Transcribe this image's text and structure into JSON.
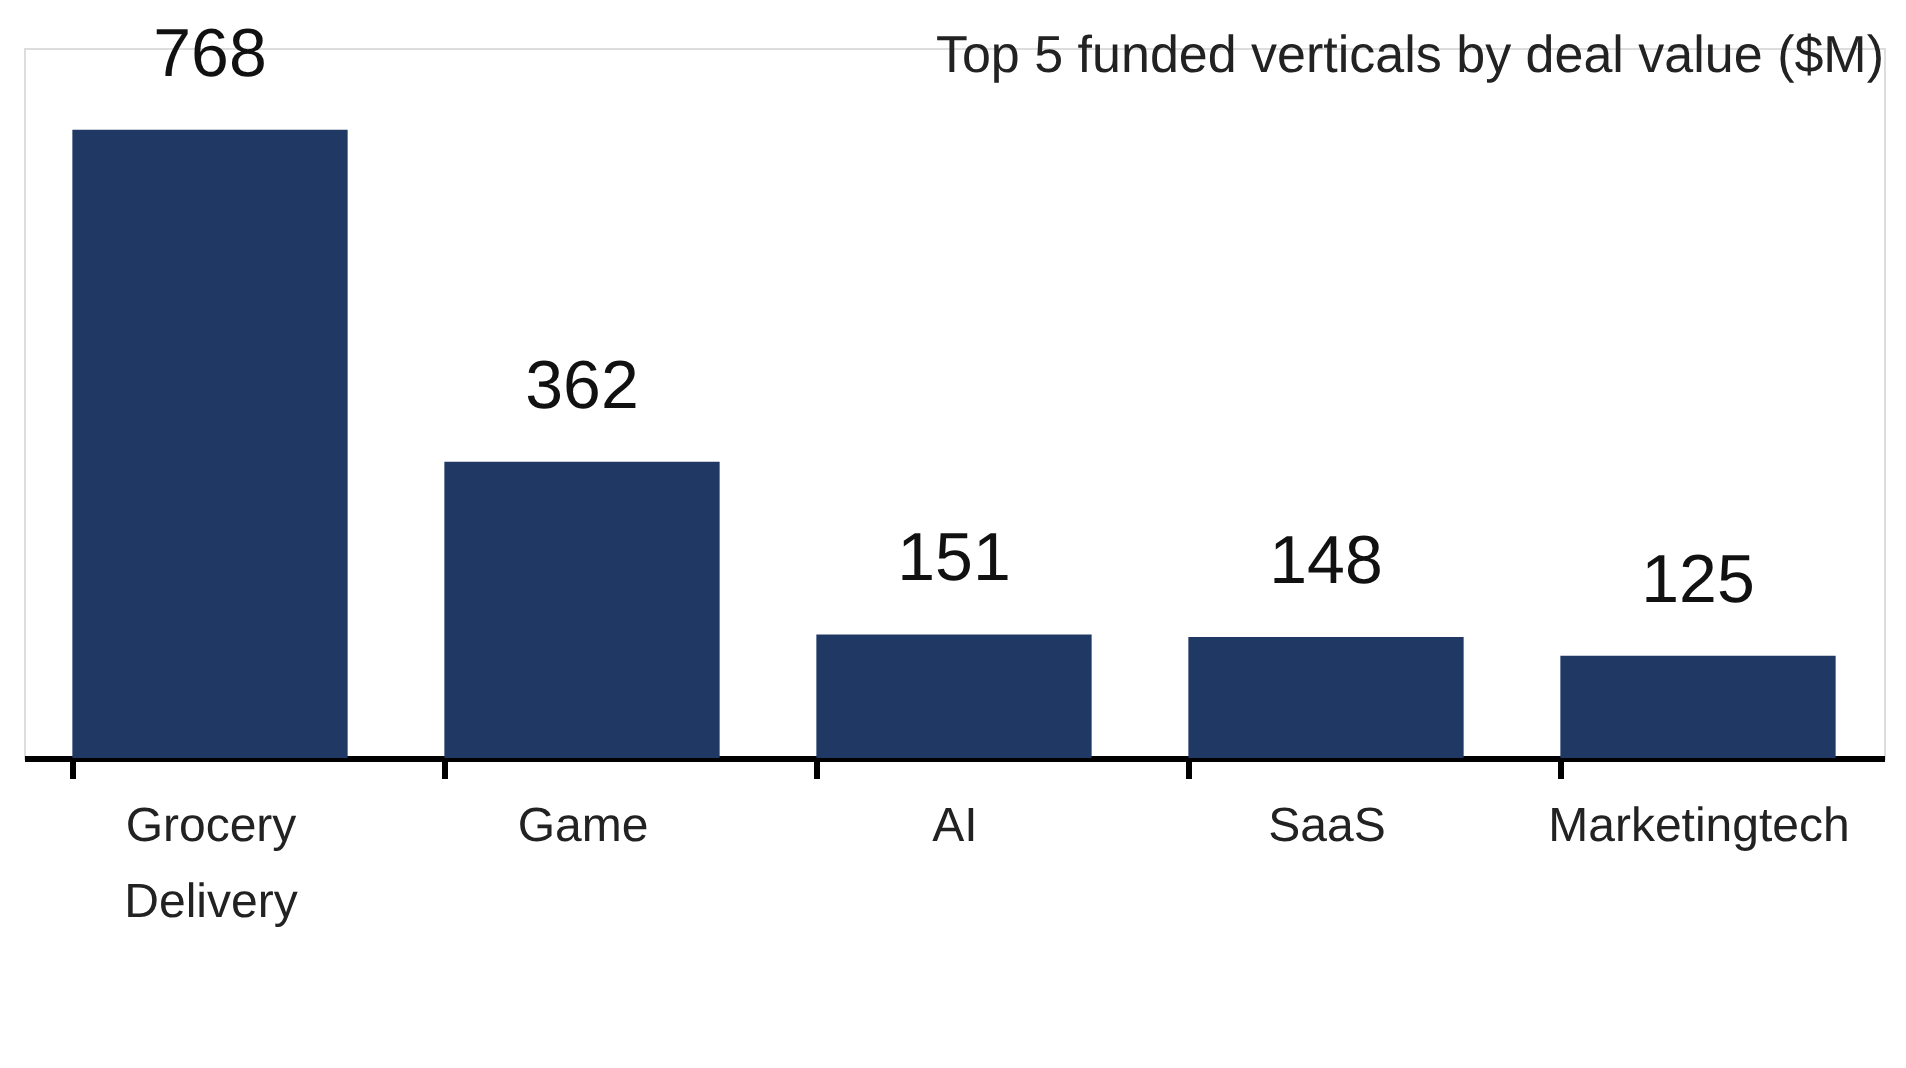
{
  "chart_data": {
    "type": "bar",
    "title": "Top 5 funded verticals by deal value ($M)",
    "categories": [
      "Grocery Delivery",
      "Game",
      "AI",
      "SaaS",
      "Marketingtech"
    ],
    "values": [
      768,
      362,
      151,
      148,
      125
    ],
    "color": "#1f3864",
    "data_labels": true
  }
}
